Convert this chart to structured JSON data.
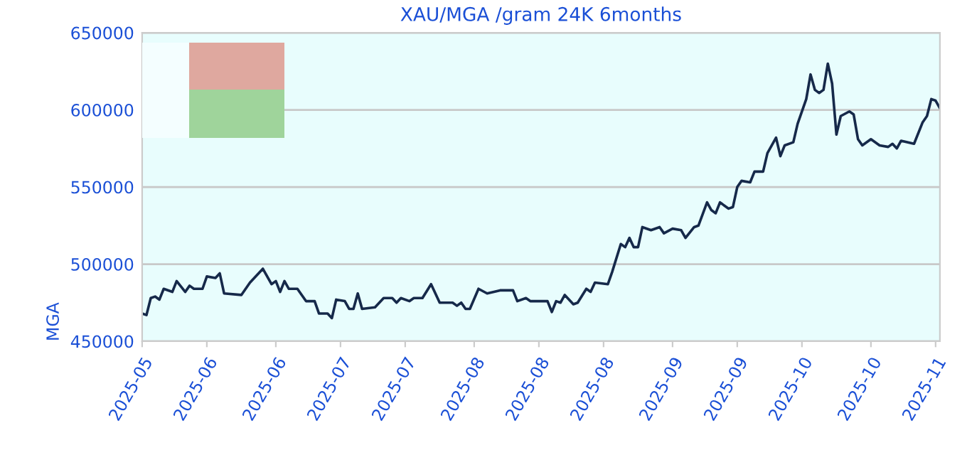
{
  "chart_data": {
    "type": "line",
    "title": "XAU/MGA /gram 24K 6months",
    "ylabel": "MGA",
    "x": [
      "2025-05-01",
      "2025-05-02",
      "2025-05-03",
      "2025-05-04",
      "2025-05-05",
      "2025-05-06",
      "2025-05-08",
      "2025-05-09",
      "2025-05-11",
      "2025-05-12",
      "2025-05-13",
      "2025-05-15",
      "2025-05-16",
      "2025-05-18",
      "2025-05-19",
      "2025-05-20",
      "2025-05-24",
      "2025-05-26",
      "2025-05-29",
      "2025-05-31",
      "2025-06-01",
      "2025-06-02",
      "2025-06-03",
      "2025-06-04",
      "2025-06-06",
      "2025-06-08",
      "2025-06-10",
      "2025-06-11",
      "2025-06-13",
      "2025-06-14",
      "2025-06-15",
      "2025-06-17",
      "2025-06-18",
      "2025-06-19",
      "2025-06-20",
      "2025-06-21",
      "2025-06-24",
      "2025-06-26",
      "2025-06-28",
      "2025-06-29",
      "2025-06-30",
      "2025-07-02",
      "2025-07-03",
      "2025-07-05",
      "2025-07-07",
      "2025-07-09",
      "2025-07-12",
      "2025-07-13",
      "2025-07-14",
      "2025-07-15",
      "2025-07-16",
      "2025-07-18",
      "2025-07-20",
      "2025-07-23",
      "2025-07-26",
      "2025-07-27",
      "2025-07-29",
      "2025-07-30",
      "2025-08-03",
      "2025-08-04",
      "2025-08-05",
      "2025-08-06",
      "2025-08-07",
      "2025-08-09",
      "2025-08-10",
      "2025-08-12",
      "2025-08-13",
      "2025-08-14",
      "2025-08-17",
      "2025-08-18",
      "2025-08-20",
      "2025-08-21",
      "2025-08-22",
      "2025-08-23",
      "2025-08-24",
      "2025-08-25",
      "2025-08-27",
      "2025-08-29",
      "2025-08-30",
      "2025-09-01",
      "2025-09-03",
      "2025-09-04",
      "2025-09-06",
      "2025-09-07",
      "2025-09-09",
      "2025-09-10",
      "2025-09-11",
      "2025-09-12",
      "2025-09-14",
      "2025-09-15",
      "2025-09-16",
      "2025-09-17",
      "2025-09-19",
      "2025-09-20",
      "2025-09-22",
      "2025-09-23",
      "2025-09-25",
      "2025-09-26",
      "2025-09-27",
      "2025-09-29",
      "2025-09-30",
      "2025-10-02",
      "2025-10-03",
      "2025-10-04",
      "2025-10-05",
      "2025-10-06",
      "2025-10-07",
      "2025-10-08",
      "2025-10-09",
      "2025-10-10",
      "2025-10-12",
      "2025-10-13",
      "2025-10-14",
      "2025-10-15",
      "2025-10-17",
      "2025-10-19",
      "2025-10-21",
      "2025-10-22",
      "2025-10-23",
      "2025-10-24",
      "2025-10-27",
      "2025-10-29",
      "2025-10-30",
      "2025-10-31",
      "2025-11-01",
      "2025-11-02"
    ],
    "series": [
      {
        "color": "#16294a",
        "values": [
          468000,
          467000,
          478000,
          479000,
          477000,
          484000,
          482000,
          489000,
          482000,
          486000,
          484000,
          484000,
          492000,
          491000,
          494000,
          481000,
          480000,
          488000,
          497000,
          487000,
          489000,
          482000,
          489000,
          484000,
          484000,
          476000,
          476000,
          468000,
          468000,
          465000,
          477000,
          476000,
          471000,
          471000,
          481000,
          471000,
          472000,
          478000,
          478000,
          475000,
          478000,
          476000,
          478000,
          478000,
          487000,
          475000,
          475000,
          473000,
          475000,
          471000,
          471000,
          484000,
          481000,
          483000,
          483000,
          476000,
          478000,
          476000,
          476000,
          469000,
          476000,
          475000,
          480000,
          474000,
          475000,
          484000,
          482000,
          488000,
          487000,
          495000,
          513000,
          511000,
          517000,
          511000,
          511000,
          524000,
          522000,
          524000,
          520000,
          523000,
          522000,
          517000,
          524000,
          525000,
          540000,
          535000,
          533000,
          540000,
          536000,
          537000,
          550000,
          554000,
          553000,
          560000,
          560000,
          572000,
          582000,
          570000,
          577000,
          579000,
          591000,
          607000,
          623000,
          613000,
          611000,
          613000,
          630000,
          617000,
          584000,
          596000,
          599000,
          597000,
          581000,
          577000,
          581000,
          577000,
          576000,
          578000,
          575000,
          580000,
          578000,
          592000,
          596000,
          607000,
          606000,
          601000
        ]
      }
    ],
    "xlim": [
      "2025-05-01",
      "2025-11-02"
    ],
    "xticks": [
      {
        "value": "2025-05-01",
        "label": "2025-05"
      },
      {
        "value": "2025-05-16",
        "label": "2025-06"
      },
      {
        "value": "2025-06-01",
        "label": "2025-06"
      },
      {
        "value": "2025-06-16",
        "label": "2025-07"
      },
      {
        "value": "2025-07-01",
        "label": "2025-07"
      },
      {
        "value": "2025-07-17",
        "label": "2025-08"
      },
      {
        "value": "2025-08-01",
        "label": "2025-08"
      },
      {
        "value": "2025-08-16",
        "label": "2025-08"
      },
      {
        "value": "2025-09-01",
        "label": "2025-09"
      },
      {
        "value": "2025-09-16",
        "label": "2025-09"
      },
      {
        "value": "2025-10-01",
        "label": "2025-10"
      },
      {
        "value": "2025-10-17",
        "label": "2025-10"
      },
      {
        "value": "2025-11-01",
        "label": "2025-11"
      }
    ],
    "ylim": [
      450000,
      650000
    ],
    "yticks": [
      450000,
      500000,
      550000,
      600000,
      650000
    ],
    "grid": "y",
    "marker": "none",
    "line_style": "solid"
  }
}
